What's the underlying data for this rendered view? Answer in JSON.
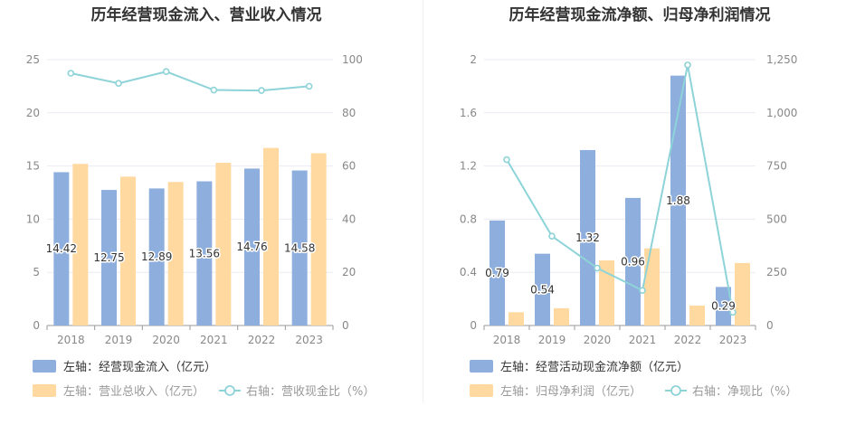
{
  "chart_data": [
    {
      "type": "bar",
      "title": "历年经营现金流入、营业收入情况",
      "categories": [
        "2018",
        "2019",
        "2020",
        "2021",
        "2022",
        "2023"
      ],
      "ylim_left": [
        0,
        25
      ],
      "left_ticks": [
        "0",
        "5",
        "10",
        "15",
        "20",
        "25"
      ],
      "ylim_right": [
        0,
        100
      ],
      "right_ticks": [
        "0",
        "20",
        "40",
        "60",
        "80",
        "100"
      ],
      "series": [
        {
          "name": "左轴：经营现金流入（亿元）",
          "axis": "left",
          "kind": "bar",
          "color": "#8eaedd",
          "values": [
            14.42,
            12.75,
            12.89,
            13.56,
            14.76,
            14.58
          ],
          "labels": [
            "14.42",
            "12.75",
            "12.89",
            "13.56",
            "14.76",
            "14.58"
          ]
        },
        {
          "name": "左轴：营业总收入（亿元）",
          "axis": "left",
          "kind": "bar",
          "color": "#ffd9a0",
          "values": [
            15.2,
            14.0,
            13.5,
            15.3,
            16.7,
            16.2
          ]
        },
        {
          "name": "右轴：营收现金比（%）",
          "axis": "right",
          "kind": "line",
          "color": "#8dd3d8",
          "values": [
            94.9,
            91.1,
            95.5,
            88.6,
            88.4,
            90.0
          ]
        }
      ],
      "legend": "bottom-left"
    },
    {
      "type": "bar",
      "title": "历年经营现金流净额、归母净利润情况",
      "categories": [
        "2018",
        "2019",
        "2020",
        "2021",
        "2022",
        "2023"
      ],
      "ylim_left": [
        0,
        2
      ],
      "left_ticks": [
        "0",
        "0.4",
        "0.8",
        "1.2",
        "1.6",
        "2"
      ],
      "ylim_right": [
        0,
        1250
      ],
      "right_ticks": [
        "0",
        "250",
        "500",
        "750",
        "1,000",
        "1,250"
      ],
      "series": [
        {
          "name": "左轴：经营活动现金流净额（亿元）",
          "axis": "left",
          "kind": "bar",
          "color": "#8eaedd",
          "values": [
            0.79,
            0.54,
            1.32,
            0.96,
            1.88,
            0.29
          ],
          "labels": [
            "0.79",
            "0.54",
            "1.32",
            "0.96",
            "1.88",
            "0.29"
          ]
        },
        {
          "name": "左轴：归母净利润（亿元）",
          "axis": "left",
          "kind": "bar",
          "color": "#ffd9a0",
          "values": [
            0.1,
            0.13,
            0.49,
            0.58,
            0.15,
            0.47
          ]
        },
        {
          "name": "右轴：净现比（%）",
          "axis": "right",
          "kind": "line",
          "color": "#8dd3d8",
          "values": [
            780,
            420,
            270,
            165,
            1225,
            62
          ]
        }
      ],
      "legend": "bottom-left"
    }
  ]
}
